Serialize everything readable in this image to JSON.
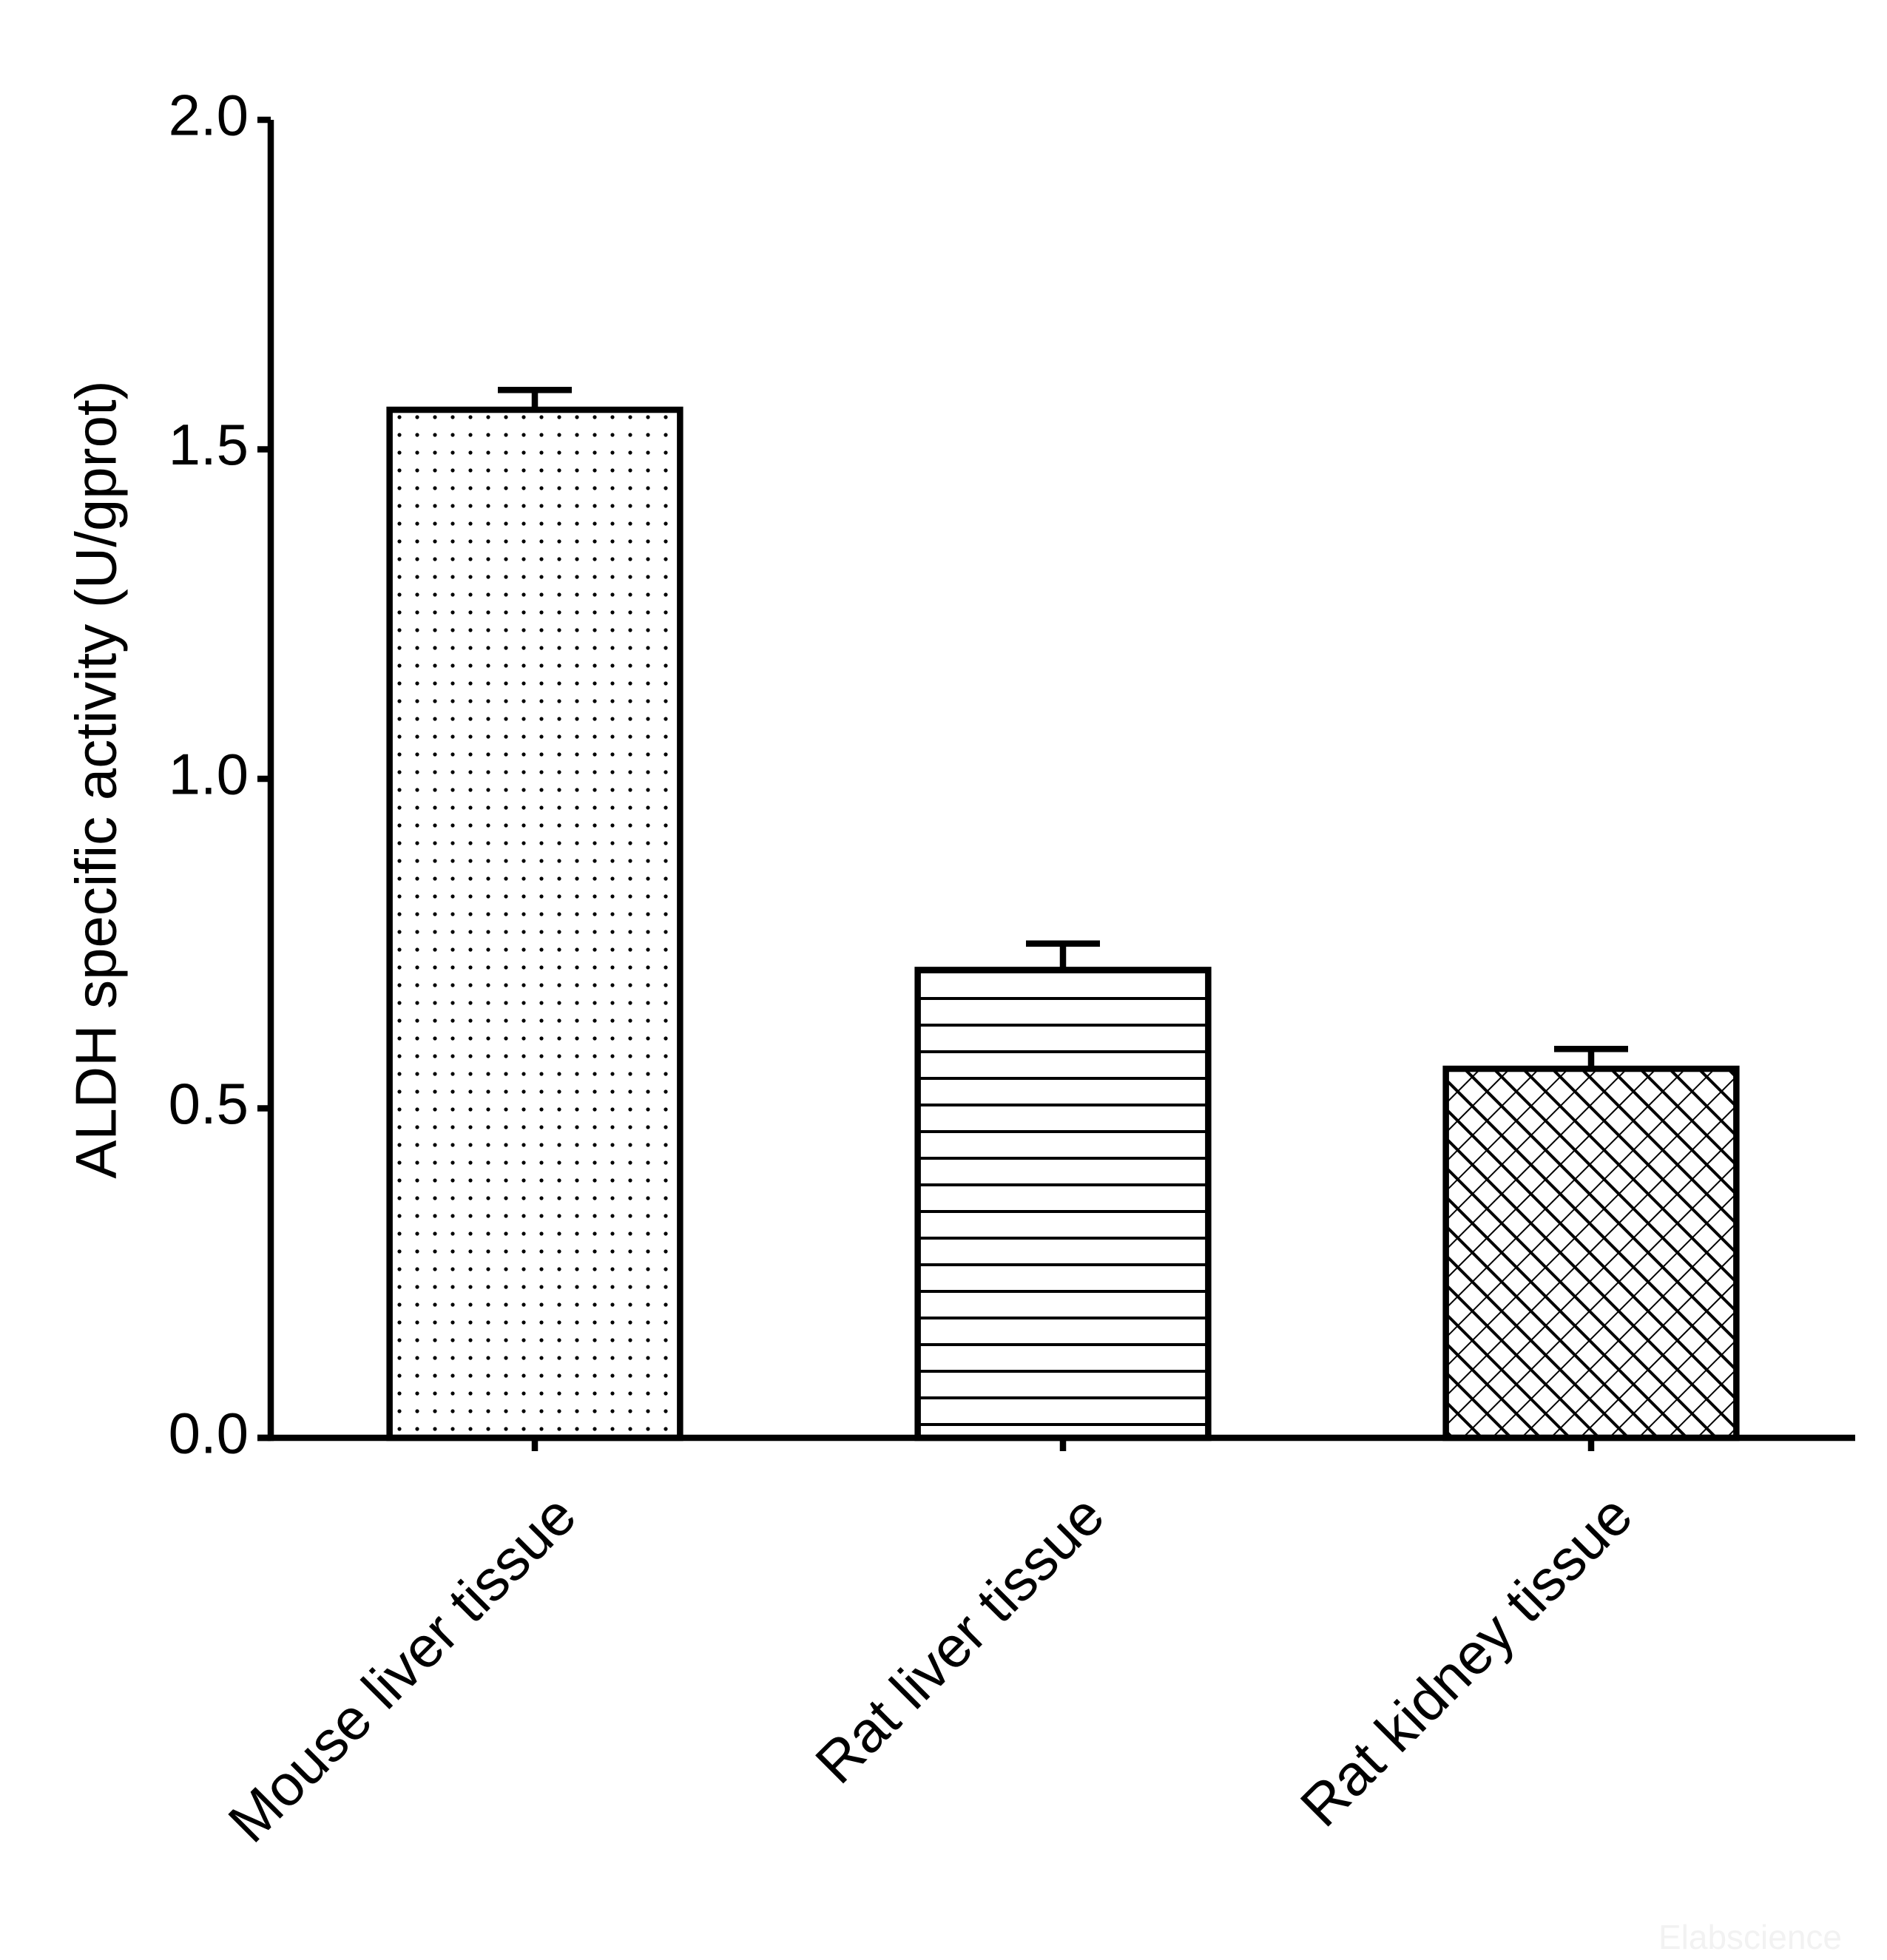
{
  "chart_data": {
    "type": "bar",
    "ylabel": "ALDH specific activity (U/gprot)",
    "categories": [
      "Mouse liver tissue",
      "Rat liver tissue",
      "Rat kidney tissue"
    ],
    "values": [
      1.56,
      0.71,
      0.56
    ],
    "errors": [
      0.03,
      0.04,
      0.03
    ],
    "patterns": [
      "dots",
      "hlines",
      "crosshatch"
    ],
    "color": "#000000",
    "ylim": [
      0,
      2.0
    ],
    "yticks": [
      {
        "value": 0,
        "label": "0.0"
      },
      {
        "value": 0.5,
        "label": "0.5"
      },
      {
        "value": 1,
        "label": "1.0"
      },
      {
        "value": 1.5,
        "label": "1.5"
      },
      {
        "value": 2,
        "label": "2.0"
      }
    ],
    "grid": false,
    "watermark": "Elabscience"
  }
}
